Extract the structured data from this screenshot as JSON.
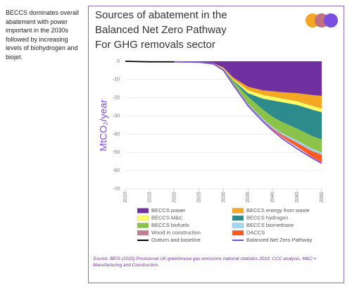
{
  "side_text": "BECCS dominates overall abatement with power important in the 2030s followed by increasing levels of biohydrogen and biojet.",
  "chart_data": {
    "type": "stacked-area",
    "title": [
      "Sources of abatement in the",
      "Balanced Net Zero Pathway",
      "For GHG removals sector"
    ],
    "y_label": "MtCO₂/year",
    "x": [
      2010,
      2015,
      2020,
      2025,
      2028,
      2030,
      2032,
      2035,
      2038,
      2040,
      2042,
      2045,
      2048,
      2050
    ],
    "xlim": [
      2010,
      2050
    ],
    "xticks": [
      2010,
      2015,
      2020,
      2025,
      2030,
      2035,
      2040,
      2045,
      2050
    ],
    "ylim": [
      -70,
      0
    ],
    "yticks": [
      0,
      -10,
      -20,
      -30,
      -40,
      -50,
      -60,
      -70
    ],
    "series": [
      {
        "name": "BECCS power",
        "color": "#7030a0",
        "values": [
          0,
          0,
          0,
          -0.2,
          -1,
          -3.5,
          -9,
          -14,
          -16,
          -16.5,
          -17,
          -17.5,
          -18.5,
          -19
        ]
      },
      {
        "name": "BECCS energy from waste",
        "color": "#f5a623",
        "values": [
          0,
          0,
          0,
          0,
          -0.2,
          -0.5,
          -1,
          -2,
          -2.5,
          -3,
          -3.5,
          -4.5,
          -6,
          -7
        ]
      },
      {
        "name": "BECCS M&C",
        "color": "#ffff66",
        "values": [
          0,
          0,
          0,
          0,
          0,
          -0.2,
          -0.5,
          -1.5,
          -2,
          -2,
          -2,
          -2,
          -2,
          -2
        ]
      },
      {
        "name": "BECCS hydrogen",
        "color": "#2e8b8b",
        "values": [
          0,
          0,
          0,
          0,
          0,
          0,
          -0.5,
          -2,
          -6,
          -9,
          -11,
          -13,
          -14.5,
          -15
        ]
      },
      {
        "name": "BECCS biofuels",
        "color": "#8bc34a",
        "values": [
          0,
          0,
          0,
          0,
          0,
          -0.5,
          -1.5,
          -4,
          -5,
          -5.5,
          -6,
          -6.5,
          -7,
          -7
        ]
      },
      {
        "name": "BECCS biomethane",
        "color": "#a0d8ef",
        "values": [
          0,
          0,
          0,
          0,
          0,
          0,
          0,
          -0.3,
          -0.5,
          -0.7,
          -0.8,
          -1,
          -1,
          -1
        ]
      },
      {
        "name": "Wood in construction",
        "color": "#c08090",
        "values": [
          0,
          0,
          0,
          0,
          0,
          -0.1,
          -0.2,
          -0.3,
          -0.4,
          -0.5,
          -0.5,
          -0.5,
          -0.5,
          -0.5
        ]
      },
      {
        "name": "DACCS",
        "color": "#ff5a1f",
        "values": [
          0,
          0,
          0,
          0,
          0,
          0,
          0,
          0,
          0,
          -0.3,
          -1,
          -2,
          -3,
          -4
        ]
      }
    ],
    "lines": [
      {
        "name": "Outturn and baseline",
        "color": "#000000",
        "values": [
          0,
          -0.3,
          -0.3,
          null,
          null,
          null,
          null,
          null,
          null,
          null,
          null,
          null,
          null,
          null
        ]
      },
      {
        "name": "Balanced Net Zero Pathway",
        "color": "#7b4fe0",
        "values": [
          null,
          null,
          -0.3,
          -0.5,
          -1.5,
          -5,
          -13,
          -24.5,
          -33,
          -38,
          -42.5,
          -48,
          -53,
          -56
        ]
      }
    ]
  },
  "source": "Source: BEIS (2020) Provisional UK greenhouse gas emissions national statistics 2019; CCC analysis. M&C = Manufacturing and Construction."
}
